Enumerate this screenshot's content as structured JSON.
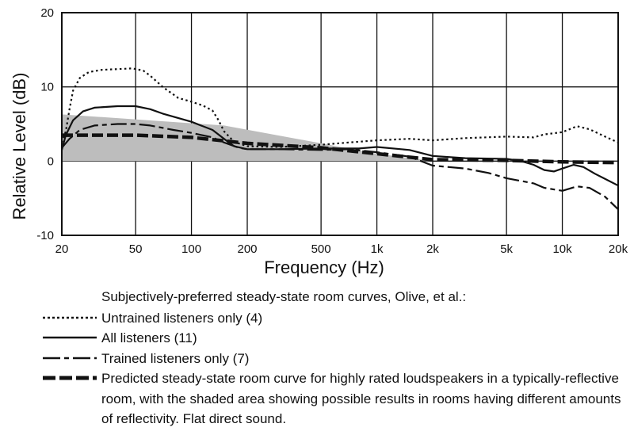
{
  "chart_data": {
    "type": "line",
    "xlabel": "Frequency (Hz)",
    "ylabel": "Relative Level (dB)",
    "xscale": "log",
    "xlim": [
      20,
      20000
    ],
    "ylim": [
      -10,
      20
    ],
    "grid": true,
    "x_ticks": [
      20,
      50,
      100,
      200,
      500,
      1000,
      2000,
      5000,
      10000,
      20000
    ],
    "x_tick_labels": [
      "20",
      "50",
      "100",
      "200",
      "500",
      "1k",
      "2k",
      "5k",
      "10k",
      "20k"
    ],
    "y_ticks": [
      -10,
      0,
      10,
      20
    ],
    "y_tick_labels": [
      "-10",
      "0",
      "10",
      "20"
    ],
    "shaded_area": {
      "upper": [
        [
          20,
          6.3
        ],
        [
          150,
          4.8
        ],
        [
          500,
          2.4
        ],
        [
          1000,
          1.0
        ],
        [
          2000,
          0.0
        ]
      ],
      "lower": [
        [
          20,
          0
        ],
        [
          2000,
          0
        ]
      ],
      "color": "#bdbdbd"
    },
    "series": [
      {
        "name": "Untrained listeners only (4)",
        "style": "dotted",
        "points": [
          [
            20,
            2.5
          ],
          [
            21,
            4
          ],
          [
            22,
            7
          ],
          [
            23,
            9.5
          ],
          [
            25,
            11.2
          ],
          [
            28,
            12
          ],
          [
            33,
            12.3
          ],
          [
            40,
            12.4
          ],
          [
            48,
            12.5
          ],
          [
            55,
            12.2
          ],
          [
            60,
            11.5
          ],
          [
            70,
            10
          ],
          [
            85,
            8.5
          ],
          [
            100,
            8
          ],
          [
            115,
            7.5
          ],
          [
            130,
            6.8
          ],
          [
            140,
            5.5
          ],
          [
            150,
            4
          ],
          [
            170,
            2.6
          ],
          [
            200,
            2
          ],
          [
            300,
            1.9
          ],
          [
            500,
            2.2
          ],
          [
            700,
            2.5
          ],
          [
            1000,
            2.8
          ],
          [
            1500,
            3
          ],
          [
            2000,
            2.8
          ],
          [
            3000,
            3.1
          ],
          [
            5000,
            3.3
          ],
          [
            7000,
            3.2
          ],
          [
            8000,
            3.6
          ],
          [
            10000,
            3.9
          ],
          [
            12000,
            4.7
          ],
          [
            14000,
            4.3
          ],
          [
            17000,
            3.3
          ],
          [
            20000,
            2.5
          ]
        ]
      },
      {
        "name": "All listeners (11)",
        "style": "solid",
        "points": [
          [
            20,
            1.5
          ],
          [
            21,
            3.5
          ],
          [
            23,
            5.5
          ],
          [
            26,
            6.7
          ],
          [
            30,
            7.2
          ],
          [
            40,
            7.4
          ],
          [
            50,
            7.4
          ],
          [
            60,
            7.0
          ],
          [
            70,
            6.4
          ],
          [
            100,
            5.3
          ],
          [
            130,
            4.2
          ],
          [
            150,
            3.0
          ],
          [
            170,
            2.0
          ],
          [
            200,
            1.6
          ],
          [
            300,
            1.6
          ],
          [
            500,
            1.7
          ],
          [
            800,
            1.7
          ],
          [
            1000,
            1.9
          ],
          [
            1500,
            1.5
          ],
          [
            2000,
            0.7
          ],
          [
            3000,
            0.4
          ],
          [
            5000,
            0.3
          ],
          [
            6000,
            0
          ],
          [
            7000,
            -0.5
          ],
          [
            8000,
            -1.2
          ],
          [
            9000,
            -1.4
          ],
          [
            10000,
            -1
          ],
          [
            11500,
            -0.5
          ],
          [
            13000,
            -0.8
          ],
          [
            15000,
            -1.7
          ],
          [
            20000,
            -3.3
          ]
        ]
      },
      {
        "name": "Trained listeners only (7)",
        "style": "long-dash",
        "points": [
          [
            20,
            1.8
          ],
          [
            22,
            3
          ],
          [
            25,
            4.2
          ],
          [
            30,
            4.8
          ],
          [
            40,
            5.0
          ],
          [
            50,
            5.0
          ],
          [
            60,
            4.8
          ],
          [
            80,
            4.2
          ],
          [
            100,
            3.8
          ],
          [
            130,
            3.2
          ],
          [
            150,
            2.5
          ],
          [
            180,
            1.8
          ],
          [
            200,
            1.6
          ],
          [
            300,
            1.6
          ],
          [
            500,
            1.5
          ],
          [
            700,
            1.6
          ],
          [
            1000,
            1.2
          ],
          [
            1500,
            0.6
          ],
          [
            2000,
            -0.6
          ],
          [
            3000,
            -1.0
          ],
          [
            4000,
            -1.6
          ],
          [
            5000,
            -2.3
          ],
          [
            7000,
            -3.0
          ],
          [
            8000,
            -3.6
          ],
          [
            10000,
            -4.0
          ],
          [
            12000,
            -3.4
          ],
          [
            14000,
            -3.6
          ],
          [
            17000,
            -4.8
          ],
          [
            20000,
            -6.5
          ]
        ]
      },
      {
        "name": "Predicted steady-state room curve for highly rated loudspeakers in a typically-reflective room, with the shaded area showing possible results in rooms having different amounts of reflectivity.  Flat direct sound.",
        "style": "heavy-dash",
        "points": [
          [
            20,
            3.5
          ],
          [
            50,
            3.5
          ],
          [
            100,
            3.2
          ],
          [
            200,
            2.4
          ],
          [
            500,
            1.8
          ],
          [
            1000,
            1.0
          ],
          [
            2000,
            0.2
          ],
          [
            5000,
            0.1
          ],
          [
            10000,
            -0.1
          ],
          [
            20000,
            -0.2
          ]
        ]
      }
    ]
  },
  "legend": {
    "heading": "Subjectively-preferred steady-state room curves, Olive, et al.:",
    "items": [
      {
        "label": "Untrained listeners only (4)",
        "style": "dotted"
      },
      {
        "label": "All listeners (11)",
        "style": "solid"
      },
      {
        "label": "Trained listeners only (7)",
        "style": "long-dash"
      },
      {
        "label": "Predicted steady-state room curve for highly rated loudspeakers in a typically-reflective room, with the shaded area showing possible results in rooms having different amounts of reflectivity.  Flat direct sound.",
        "style": "heavy-dash"
      }
    ]
  }
}
